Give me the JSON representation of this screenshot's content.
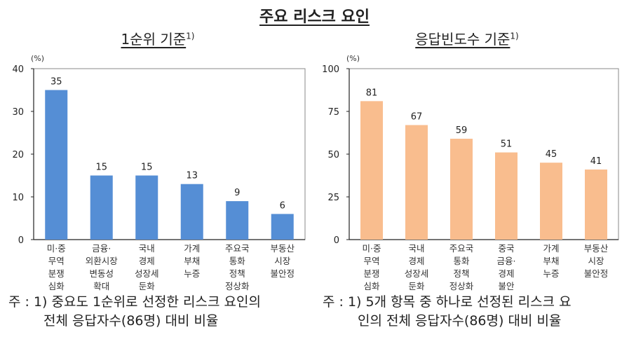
{
  "title": "주요 리스크 요인",
  "notes": [
    {
      "prefix": "주 : 1)",
      "line1": "중요도 1순위로 선정한 리스크 요인의",
      "line2": "전체 응답자수(86명) 대비 비율"
    },
    {
      "prefix": "주 : 1)",
      "line1": "5개 항목 중 하나로 선정된 리스크 요",
      "line2": "인의 전체 응답자수(86명) 대비 비율"
    }
  ],
  "chart_data": [
    {
      "type": "bar",
      "title": "1순위 기준",
      "title_footnote": "1)",
      "ylabel": "(%)",
      "ylim": [
        0,
        40
      ],
      "yticks": [
        0,
        10,
        20,
        30,
        40
      ],
      "color": "#558ed5",
      "categories": [
        [
          "미·중",
          "무역",
          "분쟁",
          "심화"
        ],
        [
          "금융·",
          "외환시장",
          "변동성",
          "확대"
        ],
        [
          "국내",
          "경제",
          "성장세",
          "둔화"
        ],
        [
          "가계",
          "부채",
          "누증"
        ],
        [
          "주요국",
          "통화",
          "정책",
          "정상화"
        ],
        [
          "부동산",
          "시장",
          "불안정"
        ]
      ],
      "values": [
        35,
        15,
        15,
        13,
        9,
        6
      ]
    },
    {
      "type": "bar",
      "title": "응답빈도수 기준",
      "title_footnote": "1)",
      "ylabel": "(%)",
      "ylim": [
        0,
        100
      ],
      "yticks": [
        0,
        25,
        50,
        75,
        100
      ],
      "color": "#f9bd8e",
      "categories": [
        [
          "미·중",
          "무역",
          "분쟁",
          "심화"
        ],
        [
          "국내",
          "경제",
          "성장세",
          "둔화"
        ],
        [
          "주요국",
          "통화",
          "정책",
          "정상화"
        ],
        [
          "중국",
          "금융·",
          "경제",
          "불안"
        ],
        [
          "가계",
          "부채",
          "누증"
        ],
        [
          "부동산",
          "시장",
          "불안정"
        ]
      ],
      "values": [
        81,
        67,
        59,
        51,
        45,
        41
      ]
    }
  ]
}
